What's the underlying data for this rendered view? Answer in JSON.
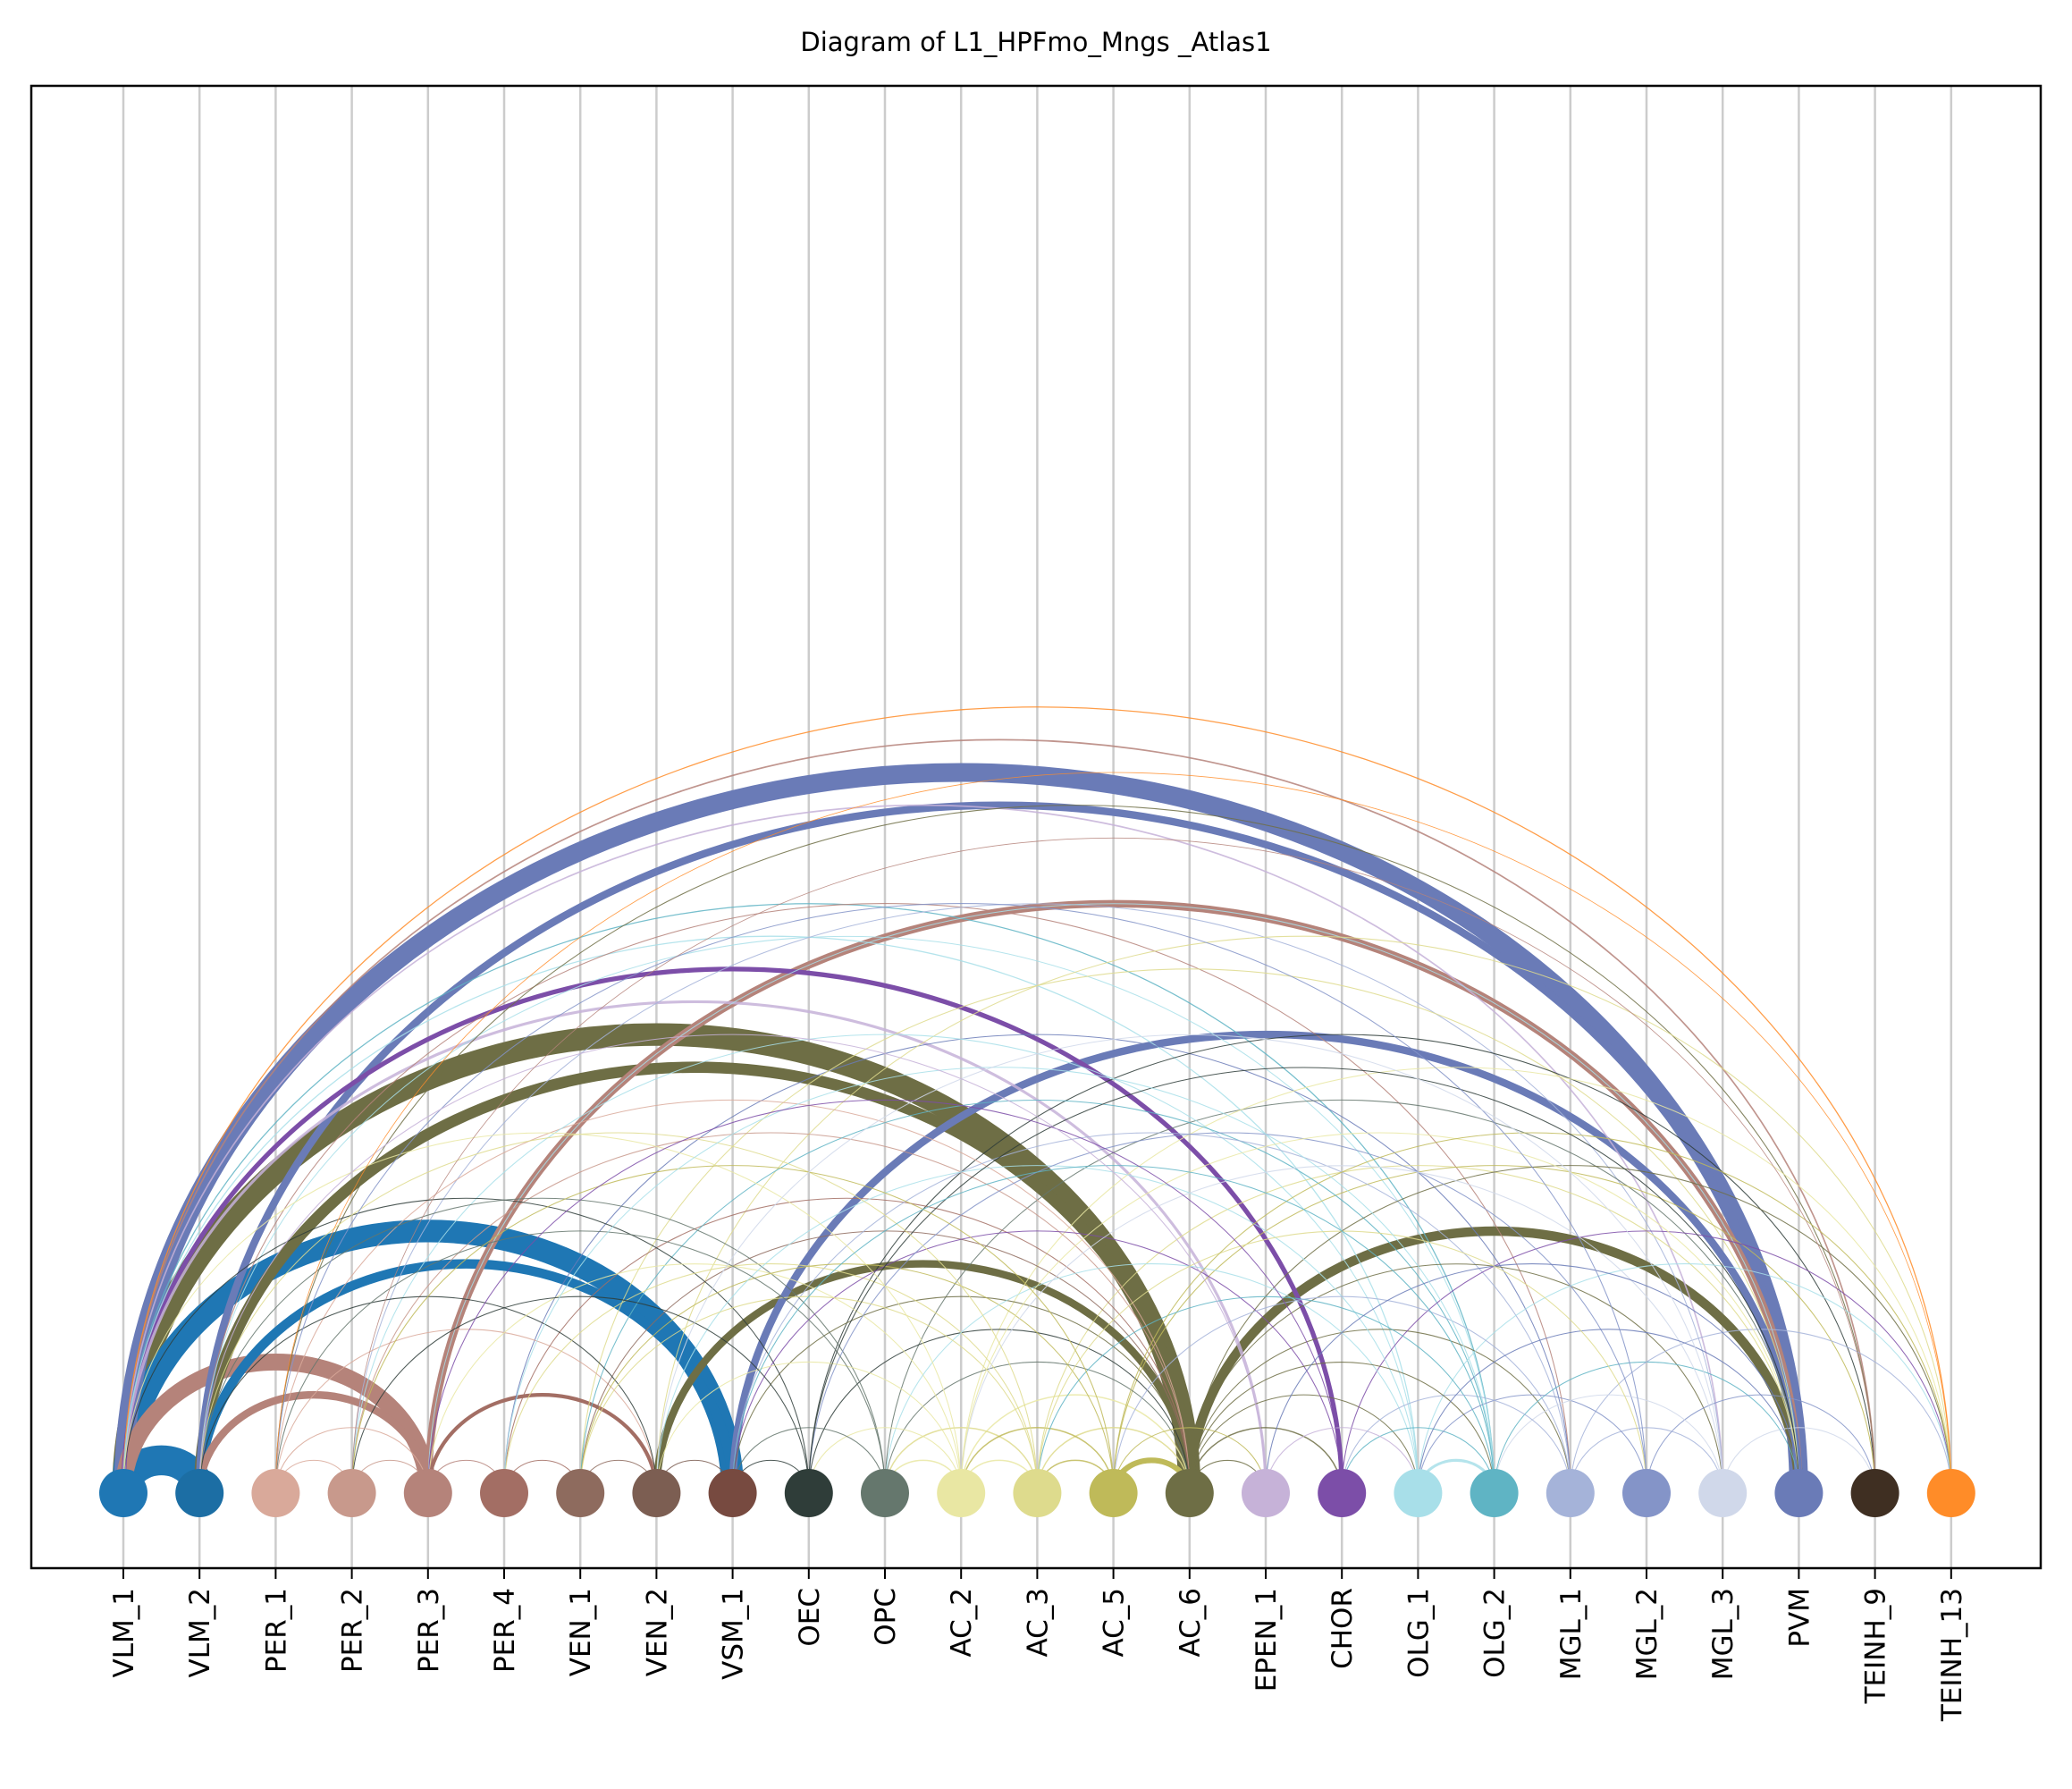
{
  "title": "Diagram of L1_HPFmo_Mngs _Atlas1",
  "nodes": [
    {
      "label": "VLM_1",
      "color": "#1f77b4"
    },
    {
      "label": "VLM_2",
      "color": "#1c6ea4"
    },
    {
      "label": "PER_1",
      "color": "#d9a99a"
    },
    {
      "label": "PER_2",
      "color": "#c8998c"
    },
    {
      "label": "PER_3",
      "color": "#b5837a"
    },
    {
      "label": "PER_4",
      "color": "#a36e64"
    },
    {
      "label": "VEN_1",
      "color": "#8e6b5e"
    },
    {
      "label": "VEN_2",
      "color": "#7c5e52"
    },
    {
      "label": "VSM_1",
      "color": "#774a40"
    },
    {
      "label": "OEC",
      "color": "#2f3d39"
    },
    {
      "label": "OPC",
      "color": "#65776d"
    },
    {
      "label": "AC_2",
      "color": "#e9e7a3"
    },
    {
      "label": "AC_3",
      "color": "#dedb8d"
    },
    {
      "label": "AC_5",
      "color": "#bfba59"
    },
    {
      "label": "AC_6",
      "color": "#6e6e45"
    },
    {
      "label": "EPEN_1",
      "color": "#c6b2d8"
    },
    {
      "label": "CHOR",
      "color": "#7c4ea8"
    },
    {
      "label": "OLG_1",
      "color": "#a8dfe9"
    },
    {
      "label": "OLG_2",
      "color": "#5fb4c4"
    },
    {
      "label": "MGL_1",
      "color": "#a5b3d9"
    },
    {
      "label": "MGL_2",
      "color": "#8494c8"
    },
    {
      "label": "MGL_3",
      "color": "#d0d8ea"
    },
    {
      "label": "PVM",
      "color": "#6a7bb7"
    },
    {
      "label": "TEINH_9",
      "color": "#3f2f22"
    },
    {
      "label": "TEINH_13",
      "color": "#ff8c28"
    }
  ],
  "edges": [
    {
      "from": "VLM_1",
      "to": "PVM",
      "weight": 10,
      "color": "#6a7bb7"
    },
    {
      "from": "VLM_2",
      "to": "PVM",
      "weight": 4,
      "color": "#6a7bb7"
    },
    {
      "from": "VLM_1",
      "to": "TEINH_13",
      "weight": 0.6,
      "color": "#ff8c28"
    },
    {
      "from": "VLM_1",
      "to": "AC_6",
      "weight": 12,
      "color": "#6e6e45"
    },
    {
      "from": "VLM_2",
      "to": "AC_6",
      "weight": 6,
      "color": "#6e6e45"
    },
    {
      "from": "VEN_2",
      "to": "AC_6",
      "weight": 4,
      "color": "#6e6e45"
    },
    {
      "from": "AC_6",
      "to": "PVM",
      "weight": 5,
      "color": "#6e6e45"
    },
    {
      "from": "VLM_1",
      "to": "CHOR",
      "weight": 2.5,
      "color": "#7c4ea8"
    },
    {
      "from": "PER_3",
      "to": "PVM",
      "weight": 4,
      "color": "#b5837a"
    },
    {
      "from": "VSM_1",
      "to": "PVM",
      "weight": 4,
      "color": "#6a7bb7"
    },
    {
      "from": "VLM_1",
      "to": "VSM_1",
      "weight": 12,
      "color": "#1f77b4"
    },
    {
      "from": "VLM_2",
      "to": "VSM_1",
      "weight": 5,
      "color": "#1f77b4"
    },
    {
      "from": "VLM_1",
      "to": "VLM_2",
      "weight": 16,
      "color": "#1f77b4"
    },
    {
      "from": "VLM_1",
      "to": "PER_3",
      "weight": 9,
      "color": "#b5837a"
    },
    {
      "from": "VLM_2",
      "to": "PER_3",
      "weight": 4,
      "color": "#b5837a"
    },
    {
      "from": "PER_3",
      "to": "VEN_2",
      "weight": 2,
      "color": "#a36e64"
    },
    {
      "from": "AC_5",
      "to": "AC_6",
      "weight": 3,
      "color": "#bfba59"
    },
    {
      "from": "VLM_1",
      "to": "EPEN_1",
      "weight": 1.5,
      "color": "#c6b2d8"
    },
    {
      "from": "VLM_1",
      "to": "TEINH_9",
      "weight": 0.8,
      "color": "#b5837a"
    },
    {
      "from": "VLM_1",
      "to": "MGL_3",
      "weight": 0.8,
      "color": "#c6b2d8"
    },
    {
      "from": "VLM_1",
      "to": "OLG_2",
      "weight": 0.6,
      "color": "#5fb4c4"
    },
    {
      "from": "VLM_1",
      "to": "OLG_1",
      "weight": 0.6,
      "color": "#a8dfe9"
    },
    {
      "from": "VLM_2",
      "to": "MGL_1",
      "weight": 0.5,
      "color": "#b5837a"
    },
    {
      "from": "VLM_2",
      "to": "OLG_2",
      "weight": 0.5,
      "color": "#a8dfe9"
    },
    {
      "from": "PER_1",
      "to": "TEINH_9",
      "weight": 0.5,
      "color": "#6e6e45"
    },
    {
      "from": "PER_2",
      "to": "MGL_3",
      "weight": 0.5,
      "color": "#a5b3d9"
    },
    {
      "from": "PER_3",
      "to": "PVM",
      "weight": 0.5,
      "color": "#a8dfe9"
    },
    {
      "from": "PER_4",
      "to": "MGL_1",
      "weight": 0.5,
      "color": "#6a7bb7"
    },
    {
      "from": "VEN_1",
      "to": "PVM",
      "weight": 0.5,
      "color": "#dedb8d"
    },
    {
      "from": "VEN_2",
      "to": "TEINH_13",
      "weight": 0.5,
      "color": "#dedb8d"
    },
    {
      "from": "OEC",
      "to": "TEINH_9",
      "weight": 0.5,
      "color": "#2f3d39"
    },
    {
      "from": "OPC",
      "to": "PVM",
      "weight": 0.5,
      "color": "#65776d"
    },
    {
      "from": "AC_2",
      "to": "TEINH_13",
      "weight": 0.5,
      "color": "#e9e7a3"
    },
    {
      "from": "AC_3",
      "to": "PVM",
      "weight": 0.5,
      "color": "#dedb8d"
    },
    {
      "from": "AC_5",
      "to": "TEINH_9",
      "weight": 0.5,
      "color": "#bfba59"
    },
    {
      "from": "PER_1",
      "to": "VEN_2",
      "weight": 0.5,
      "color": "#d9a99a"
    },
    {
      "from": "PER_1",
      "to": "AC_6",
      "weight": 0.5,
      "color": "#d9a99a"
    },
    {
      "from": "PER_2",
      "to": "AC_6",
      "weight": 0.5,
      "color": "#c8998c"
    },
    {
      "from": "PER_2",
      "to": "OLG_1",
      "weight": 0.5,
      "color": "#a8dfe9"
    },
    {
      "from": "PER_4",
      "to": "AC_6",
      "weight": 0.5,
      "color": "#a36e64"
    },
    {
      "from": "VEN_1",
      "to": "AC_6",
      "weight": 0.5,
      "color": "#8e6b5e"
    },
    {
      "from": "VEN_1",
      "to": "OLG_2",
      "weight": 0.5,
      "color": "#5fb4c4"
    },
    {
      "from": "VSM_1",
      "to": "AC_6",
      "weight": 0.5,
      "color": "#6e6e45"
    },
    {
      "from": "VSM_1",
      "to": "MGL_1",
      "weight": 0.5,
      "color": "#a5b3d9"
    },
    {
      "from": "OEC",
      "to": "AC_6",
      "weight": 0.5,
      "color": "#2f3d39"
    },
    {
      "from": "OPC",
      "to": "AC_6",
      "weight": 0.5,
      "color": "#65776d"
    },
    {
      "from": "AC_2",
      "to": "AC_6",
      "weight": 0.7,
      "color": "#e9e7a3"
    },
    {
      "from": "AC_3",
      "to": "AC_6",
      "weight": 0.7,
      "color": "#dedb8d"
    },
    {
      "from": "AC_6",
      "to": "OLG_1",
      "weight": 0.5,
      "color": "#6e6e45"
    },
    {
      "from": "AC_6",
      "to": "MGL_1",
      "weight": 0.5,
      "color": "#6e6e45"
    },
    {
      "from": "AC_6",
      "to": "MGL_3",
      "weight": 0.5,
      "color": "#6e6e45"
    },
    {
      "from": "AC_6",
      "to": "TEINH_13",
      "weight": 0.5,
      "color": "#6e6e45"
    },
    {
      "from": "CHOR",
      "to": "TEINH_13",
      "weight": 0.5,
      "color": "#7c4ea8"
    },
    {
      "from": "OLG_1",
      "to": "TEINH_13",
      "weight": 0.5,
      "color": "#a8dfe9"
    },
    {
      "from": "OLG_2",
      "to": "PVM",
      "weight": 0.5,
      "color": "#5fb4c4"
    },
    {
      "from": "MGL_1",
      "to": "TEINH_13",
      "weight": 0.5,
      "color": "#a5b3d9"
    },
    {
      "from": "MGL_2",
      "to": "TEINH_9",
      "weight": 0.5,
      "color": "#8494c8"
    },
    {
      "from": "VLM_2",
      "to": "VEN_2",
      "weight": 0.5,
      "color": "#2f3d39"
    },
    {
      "from": "VLM_1",
      "to": "OEC",
      "weight": 0.5,
      "color": "#2f3d39"
    },
    {
      "from": "VLM_2",
      "to": "OPC",
      "weight": 0.5,
      "color": "#65776d"
    },
    {
      "from": "PER_3",
      "to": "AC_2",
      "weight": 0.5,
      "color": "#e9e7a3"
    },
    {
      "from": "PER_4",
      "to": "AC_3",
      "weight": 0.5,
      "color": "#dedb8d"
    },
    {
      "from": "VEN_1",
      "to": "AC_5",
      "weight": 0.5,
      "color": "#bfba59"
    },
    {
      "from": "VEN_2",
      "to": "OLG_1",
      "weight": 0.5,
      "color": "#a8dfe9"
    },
    {
      "from": "VSM_1",
      "to": "CHOR",
      "weight": 0.5,
      "color": "#7c4ea8"
    },
    {
      "from": "OPC",
      "to": "OLG_1",
      "weight": 0.5,
      "color": "#a8dfe9"
    },
    {
      "from": "OEC",
      "to": "MGL_2",
      "weight": 0.5,
      "color": "#8494c8"
    },
    {
      "from": "AC_2",
      "to": "MGL_3",
      "weight": 0.5,
      "color": "#d0d8ea"
    },
    {
      "from": "AC_3",
      "to": "OLG_2",
      "weight": 0.5,
      "color": "#5fb4c4"
    },
    {
      "from": "AC_5",
      "to": "MGL_1",
      "weight": 0.5,
      "color": "#a5b3d9"
    },
    {
      "from": "OPC",
      "to": "AC_2",
      "weight": 0.7,
      "color": "#e9e7a3"
    },
    {
      "from": "OPC",
      "to": "AC_3",
      "weight": 0.7,
      "color": "#dedb8d"
    },
    {
      "from": "OEC",
      "to": "AC_2",
      "weight": 0.5,
      "color": "#e9e7a3"
    },
    {
      "from": "AC_2",
      "to": "AC_5",
      "weight": 0.7,
      "color": "#bfba59"
    },
    {
      "from": "AC_3",
      "to": "AC_5",
      "weight": 0.7,
      "color": "#bfba59"
    },
    {
      "from": "AC_2",
      "to": "AC_3",
      "weight": 0.7,
      "color": "#e9e7a3"
    },
    {
      "from": "VSM_1",
      "to": "OEC",
      "weight": 0.5,
      "color": "#2f3d39"
    },
    {
      "from": "VSM_1",
      "to": "OPC",
      "weight": 0.5,
      "color": "#65776d"
    },
    {
      "from": "VEN_2",
      "to": "AC_2",
      "weight": 0.5,
      "color": "#e9e7a3"
    },
    {
      "from": "VEN_1",
      "to": "AC_3",
      "weight": 0.5,
      "color": "#dedb8d"
    },
    {
      "from": "PER_1",
      "to": "OPC",
      "weight": 0.5,
      "color": "#65776d"
    },
    {
      "from": "PER_2",
      "to": "OEC",
      "weight": 0.5,
      "color": "#2f3d39"
    },
    {
      "from": "PER_1",
      "to": "PER_3",
      "weight": 0.5,
      "color": "#d9a99a"
    },
    {
      "from": "PER_2",
      "to": "PER_3",
      "weight": 0.5,
      "color": "#c8998c"
    },
    {
      "from": "PER_3",
      "to": "PER_4",
      "weight": 0.5,
      "color": "#b5837a"
    },
    {
      "from": "PER_4",
      "to": "VEN_1",
      "weight": 0.5,
      "color": "#a36e64"
    },
    {
      "from": "VEN_1",
      "to": "VEN_2",
      "weight": 0.5,
      "color": "#8e6b5e"
    },
    {
      "from": "VEN_2",
      "to": "VSM_1",
      "weight": 0.5,
      "color": "#7c5e52"
    },
    {
      "from": "PER_1",
      "to": "PER_2",
      "weight": 0.5,
      "color": "#d9a99a"
    },
    {
      "from": "AC_5",
      "to": "EPEN_1",
      "weight": 0.5,
      "color": "#bfba59"
    },
    {
      "from": "AC_6",
      "to": "EPEN_1",
      "weight": 0.5,
      "color": "#6e6e45"
    },
    {
      "from": "AC_6",
      "to": "CHOR",
      "weight": 0.7,
      "color": "#6e6e45"
    },
    {
      "from": "OLG_1",
      "to": "OLG_2",
      "weight": 1.5,
      "color": "#a8dfe9"
    },
    {
      "from": "MGL_1",
      "to": "MGL_3",
      "weight": 0.5,
      "color": "#a5b3d9"
    },
    {
      "from": "MGL_3",
      "to": "TEINH_9",
      "weight": 0.5,
      "color": "#d0d8ea"
    },
    {
      "from": "CHOR",
      "to": "OLG_2",
      "weight": 0.5,
      "color": "#5fb4c4"
    },
    {
      "from": "EPEN_1",
      "to": "OLG_1",
      "weight": 0.5,
      "color": "#c6b2d8"
    },
    {
      "from": "OLG_1",
      "to": "MGL_2",
      "weight": 0.5,
      "color": "#8494c8"
    },
    {
      "from": "OLG_2",
      "to": "MGL_3",
      "weight": 0.5,
      "color": "#d0d8ea"
    },
    {
      "from": "CHOR",
      "to": "MGL_1",
      "weight": 0.5,
      "color": "#a5b3d9"
    },
    {
      "from": "AC_6",
      "to": "OLG_2",
      "weight": 0.5,
      "color": "#6e6e45"
    },
    {
      "from": "OLG_1",
      "to": "PVM",
      "weight": 0.5,
      "color": "#6a7bb7"
    },
    {
      "from": "EPEN_1",
      "to": "PVM",
      "weight": 0.5,
      "color": "#6a7bb7"
    },
    {
      "from": "AC_3",
      "to": "MGL_2",
      "weight": 0.5,
      "color": "#dedb8d"
    },
    {
      "from": "AC_2",
      "to": "PVM",
      "weight": 0.5,
      "color": "#e9e7a3"
    },
    {
      "from": "AC_5",
      "to": "TEINH_13",
      "weight": 0.5,
      "color": "#bfba59"
    },
    {
      "from": "OEC",
      "to": "PVM",
      "weight": 0.5,
      "color": "#2f3d39"
    },
    {
      "from": "VLM_2",
      "to": "AC_3",
      "weight": 0.5,
      "color": "#dedb8d"
    },
    {
      "from": "VLM_1",
      "to": "AC_2",
      "weight": 0.5,
      "color": "#e9e7a3"
    },
    {
      "from": "PER_2",
      "to": "AC_5",
      "weight": 0.5,
      "color": "#bfba59"
    },
    {
      "from": "PER_1",
      "to": "MGL_2",
      "weight": 0.5,
      "color": "#8494c8"
    },
    {
      "from": "PER_4",
      "to": "OLG_2",
      "weight": 0.5,
      "color": "#a8dfe9"
    },
    {
      "from": "VEN_2",
      "to": "MGL_3",
      "weight": 0.5,
      "color": "#d0d8ea"
    },
    {
      "from": "VSM_1",
      "to": "OLG_2",
      "weight": 0.5,
      "color": "#5fb4c4"
    },
    {
      "from": "PER_3",
      "to": "CHOR",
      "weight": 0.5,
      "color": "#7c4ea8"
    },
    {
      "from": "VLM_2",
      "to": "EPEN_1",
      "weight": 0.5,
      "color": "#c6b2d8"
    },
    {
      "from": "PER_1",
      "to": "TEINH_13",
      "weight": 0.4,
      "color": "#ff8c28"
    },
    {
      "from": "PER_2",
      "to": "TEINH_9",
      "weight": 0.4,
      "color": "#b5837a"
    }
  ]
}
